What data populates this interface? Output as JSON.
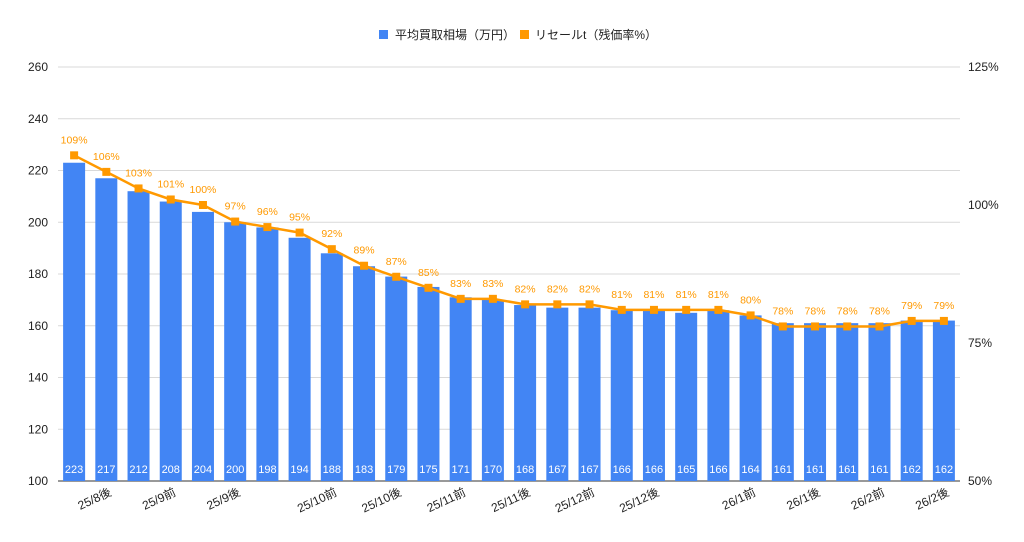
{
  "chart_data": {
    "type": "bar+line",
    "legend_position": "top",
    "grid": true,
    "categories": [
      "",
      "25/8後",
      "",
      "25/9前",
      "",
      "25/9後",
      "",
      "",
      "25/10前",
      "",
      "25/10後",
      "",
      "25/11前",
      "",
      "25/11後",
      "",
      "25/12前",
      "",
      "25/12後",
      "",
      "",
      "26/1前",
      "",
      "26/1後",
      "",
      "26/2前",
      "",
      "26/2後"
    ],
    "series": [
      {
        "name": "平均買取相場（万円）",
        "type": "bar",
        "axis": "left",
        "color": "#4285f4",
        "values": [
          223,
          217,
          212,
          208,
          204,
          200,
          198,
          194,
          188,
          183,
          179,
          175,
          171,
          170,
          168,
          167,
          167,
          166,
          166,
          165,
          166,
          164,
          161,
          161,
          161,
          161,
          162,
          162
        ]
      },
      {
        "name": "リセールt（残価率%）",
        "type": "line",
        "axis": "right",
        "color": "#ff9900",
        "values": [
          109,
          106,
          103,
          101,
          100,
          97,
          96,
          95,
          92,
          89,
          87,
          85,
          83,
          83,
          82,
          82,
          82,
          81,
          81,
          81,
          81,
          80,
          78,
          78,
          78,
          78,
          79,
          79
        ]
      }
    ],
    "y_left": {
      "range": [
        100,
        260
      ],
      "ticks": [
        "100",
        "120",
        "140",
        "160",
        "180",
        "200",
        "220",
        "240",
        "260"
      ]
    },
    "y_right": {
      "range": [
        50,
        125
      ],
      "ticks": [
        "50%",
        "75%",
        "100%",
        "125%"
      ]
    }
  }
}
